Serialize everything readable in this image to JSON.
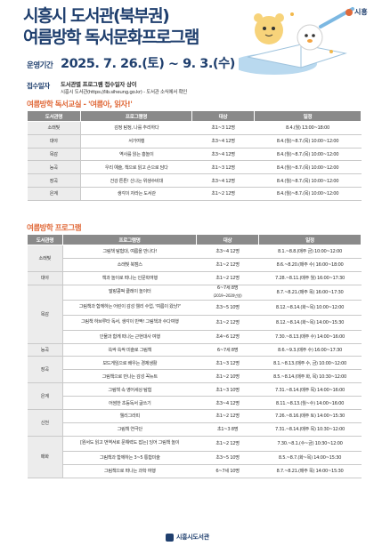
{
  "header": {
    "title_line1": "시흥시 도서관(북부권)",
    "title_line2": "여름방학 독서문화프로그램",
    "logo_text": "시흥"
  },
  "info": {
    "period_label": "운영기간",
    "period_value": "2025. 7. 26.(토) ~ 9. 3.(수)",
    "apply_label": "접수일자",
    "apply_line1": "도서관별 프로그램 접수일자 상이",
    "apply_line2": "시흥시 도서관(https://lib.siheung.go.kr) - 도서관 소식에서 확인"
  },
  "section1": {
    "title": "여름방학 독서교실 - '여름아, 읽자!'",
    "headers": [
      "도서관명",
      "프로그램명",
      "대상",
      "일정"
    ],
    "rows": [
      {
        "lib": "소래빛",
        "program": "감정 탐정, 나를 추리하다",
        "target": "초1~3 12명",
        "schedule": "8.4.(월) 13:00~18:00"
      },
      {
        "lib": "대야",
        "program": "서가여행",
        "target": "초3~4 12명",
        "schedule": "8.4.(월)~8.7.(목) 10:00~12:00"
      },
      {
        "lib": "목감",
        "program": "역사를 읽는 흥놀이",
        "target": "초3~4 12명",
        "schedule": "8.4.(월)~8.7.(목) 10:00~12:00"
      },
      {
        "lib": "능곡",
        "program": "우리 예술, 책으로 읽고 손으로 담다",
        "target": "초1~3 12명",
        "schedule": "8.4.(월)~8.7.(목) 10:00~12:00"
      },
      {
        "lib": "장곡",
        "program": "건강 튼튼! 신나는 위생수비대",
        "target": "초3~4 12명",
        "schedule": "8.4.(월)~8.7.(목) 10:00~12:00"
      },
      {
        "lib": "은계",
        "program": "생각이 자라는 도서관",
        "target": "초1~2 12명",
        "schedule": "8.4.(월)~8.7.(목) 10:00~12:00"
      }
    ]
  },
  "section2": {
    "title": "여름방학 프로그램",
    "headers": [
      "도서관명",
      "프로그램명",
      "대상",
      "일정"
    ],
    "rows": [
      {
        "lib": "소래빛",
        "libspan": 2,
        "program": "그림책 탐험대, 여름을 만나다!",
        "target": "초3~4 12명",
        "schedule": "8.1.~8.8.(매주 금) 10:00~12:00"
      },
      {
        "program": "소래빛 북캠스",
        "target": "초1~2 12명",
        "schedule": "8.6.~8.20.(매주 수) 16:00~18:00"
      },
      {
        "lib": "대야",
        "libspan": 1,
        "program": "책과 놀이로 떠나는 인문학여행",
        "target": "초1~2 12명",
        "schedule": "7.28.~8.11.(매주 월) 16:00~17:30"
      },
      {
        "lib": "목감",
        "libspan": 4,
        "program": "말랑콩떡 클레이 놀이터",
        "target": "6~7세 8명",
        "target2": "(2019~2020년생)",
        "schedule": "8.7.~8.21.(매주 목) 16:00~17:30",
        "tall": true
      },
      {
        "program": "그림책과 함께하는 어린이 감성 웰리 수업, '여름이 왔냥?'",
        "target": "초3~5 10명",
        "schedule": "8.12.~8.14.(화~목) 10:00~12:00",
        "tall": true
      },
      {
        "program": "그림책 하브루타 독서, 생각이 반짝! 그림책과 수다여행",
        "target": "초1~2 12명",
        "schedule": "8.12.~8.14.(화~목) 14:00~15:30",
        "tall": true
      },
      {
        "program": "인물과 함께 떠나는 근현대사 여행",
        "target": "초4~6 12명",
        "schedule": "7.30.~8.13.(매주 수) 14:00~16:00"
      },
      {
        "lib": "능곡",
        "libspan": 1,
        "program": "쓱싹 쓱싹 미술로 그림책",
        "target": "6~7세 8명",
        "schedule": "8.6.~9.3.(매주 수) 16:00~17:30"
      },
      {
        "lib": "장곡",
        "libspan": 2,
        "program": "보드게임으로 배우는 경제생활",
        "target": "초1~3 12명",
        "schedule": "8.1.~8.13.(매주 수, 금) 10:00~12:00"
      },
      {
        "program": "그림책으로 만나는 감성 꼭뉴트",
        "target": "초1~2 10명",
        "schedule": "8.5.~8.14.(매주 화, 목) 10:30~12:00"
      },
      {
        "lib": "은계",
        "libspan": 2,
        "program": "그림책 속 영어세상 탐험",
        "target": "초1~3 10명",
        "schedule": "7.31.~8.14.(매주 목) 14:00~16:00"
      },
      {
        "program": "어썸한 초등독서 글쓰기",
        "target": "초3~4 12명",
        "schedule": "8.11.~8.13.(월~수) 14:00~16:00"
      },
      {
        "lib": "신천",
        "libspan": 2,
        "program": "웰리그라피",
        "target": "초1~2 12명",
        "schedule": "7.26.~8.16.(매주 토) 14:00~15:30"
      },
      {
        "program": "그림책 연극단",
        "target": "초1~3 8명",
        "schedule": "7.31.~8.14.(매주 목) 10:30~12:00"
      },
      {
        "lib": "매화",
        "libspan": 3,
        "program": "[원서도 읽고 번역서로 문해력도 잡는] 잉어 그림책 놀이",
        "target": "초1~2 12명",
        "schedule": "7.30.~8.1.(수~금) 10:30~12:00",
        "tall": true
      },
      {
        "program": "그림책과 함께하는 3~5 통합미술",
        "target": "초3~5 10명",
        "schedule": "8.5.~8.7.(화~목) 14:00~15:30"
      },
      {
        "program": "그림책으로 떠나는 과학 여행",
        "target": "6~7세 10명",
        "schedule": "8.7.~8.21.(매주 목) 14:00~15:30"
      }
    ]
  },
  "footer": {
    "text": "시흥시도서관"
  },
  "colors": {
    "navy": "#1f3f6e",
    "orange": "#e06a3a",
    "header_gray": "#8a8a8a"
  }
}
